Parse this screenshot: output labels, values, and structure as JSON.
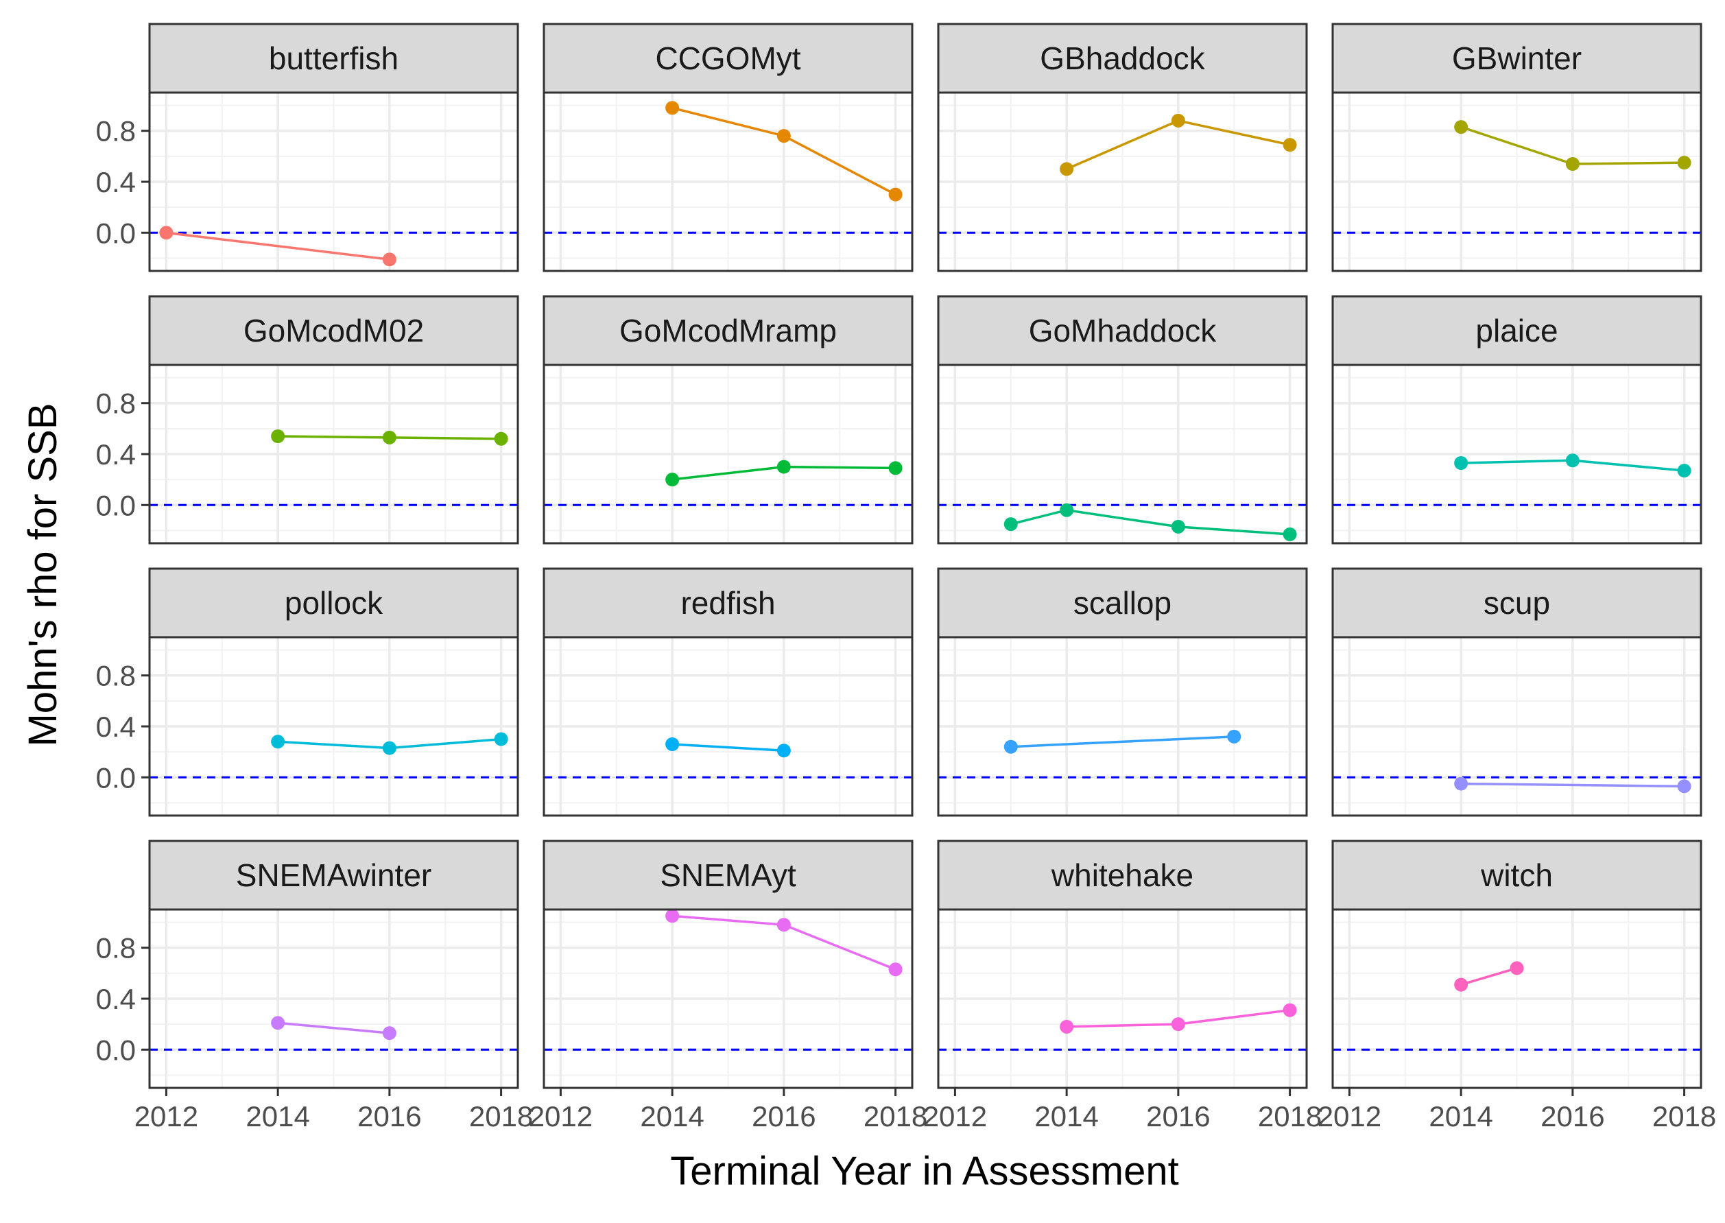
{
  "chart_data": {
    "type": "line",
    "layout": "facet-grid-4x4",
    "xlabel": "Terminal Year in Assessment",
    "ylabel": "Mohn's rho for SSB",
    "x_ticks": [
      2012,
      2014,
      2016,
      2018
    ],
    "y_ticks": [
      0.0,
      0.4,
      0.8
    ],
    "y_tick_labels": [
      "0.0",
      "0.4",
      "0.8"
    ],
    "xlim": [
      2011.7,
      2018.3
    ],
    "ylim": [
      -0.3,
      1.1
    ],
    "reference_line": {
      "y": 0.0,
      "color": "#0000FF",
      "style": "dashed"
    },
    "grid": true,
    "panels": [
      {
        "name": "butterfish",
        "color": "#F8766D",
        "x": [
          2012,
          2016
        ],
        "y": [
          0.0,
          -0.21
        ]
      },
      {
        "name": "CCGOMyt",
        "color": "#E58700",
        "x": [
          2014,
          2016,
          2018
        ],
        "y": [
          0.98,
          0.76,
          0.3
        ]
      },
      {
        "name": "GBhaddock",
        "color": "#C99800",
        "x": [
          2014,
          2016,
          2018
        ],
        "y": [
          0.5,
          0.88,
          0.69
        ]
      },
      {
        "name": "GBwinter",
        "color": "#A3A500",
        "x": [
          2014,
          2016,
          2018
        ],
        "y": [
          0.83,
          0.54,
          0.55
        ]
      },
      {
        "name": "GoMcodM02",
        "color": "#6BB100",
        "x": [
          2014,
          2016,
          2018
        ],
        "y": [
          0.54,
          0.53,
          0.52
        ]
      },
      {
        "name": "GoMcodMramp",
        "color": "#00BA38",
        "x": [
          2014,
          2016,
          2018
        ],
        "y": [
          0.2,
          0.3,
          0.29
        ]
      },
      {
        "name": "GoMhaddock",
        "color": "#00BF7D",
        "x": [
          2013,
          2014,
          2016,
          2018
        ],
        "y": [
          -0.15,
          -0.04,
          -0.17,
          -0.23
        ]
      },
      {
        "name": "plaice",
        "color": "#00C0AF",
        "x": [
          2014,
          2016,
          2018
        ],
        "y": [
          0.33,
          0.35,
          0.27
        ]
      },
      {
        "name": "pollock",
        "color": "#00BCD8",
        "x": [
          2014,
          2016,
          2018
        ],
        "y": [
          0.28,
          0.23,
          0.3
        ]
      },
      {
        "name": "redfish",
        "color": "#00B0F6",
        "x": [
          2014,
          2016
        ],
        "y": [
          0.26,
          0.21
        ]
      },
      {
        "name": "scallop",
        "color": "#35A2FF",
        "x": [
          2013,
          2017
        ],
        "y": [
          0.24,
          0.32
        ]
      },
      {
        "name": "scup",
        "color": "#9590FF",
        "x": [
          2014,
          2018
        ],
        "y": [
          -0.05,
          -0.07
        ]
      },
      {
        "name": "SNEMAwinter",
        "color": "#C77CFF",
        "x": [
          2014,
          2016
        ],
        "y": [
          0.21,
          0.13
        ]
      },
      {
        "name": "SNEMAyt",
        "color": "#E76BF3",
        "x": [
          2014,
          2016,
          2018
        ],
        "y": [
          1.05,
          0.98,
          0.63
        ]
      },
      {
        "name": "whitehake",
        "color": "#FA62DB",
        "x": [
          2014,
          2016,
          2018
        ],
        "y": [
          0.18,
          0.2,
          0.31
        ]
      },
      {
        "name": "witch",
        "color": "#FF62BC",
        "x": [
          2014,
          2015
        ],
        "y": [
          0.51,
          0.64
        ]
      }
    ]
  }
}
